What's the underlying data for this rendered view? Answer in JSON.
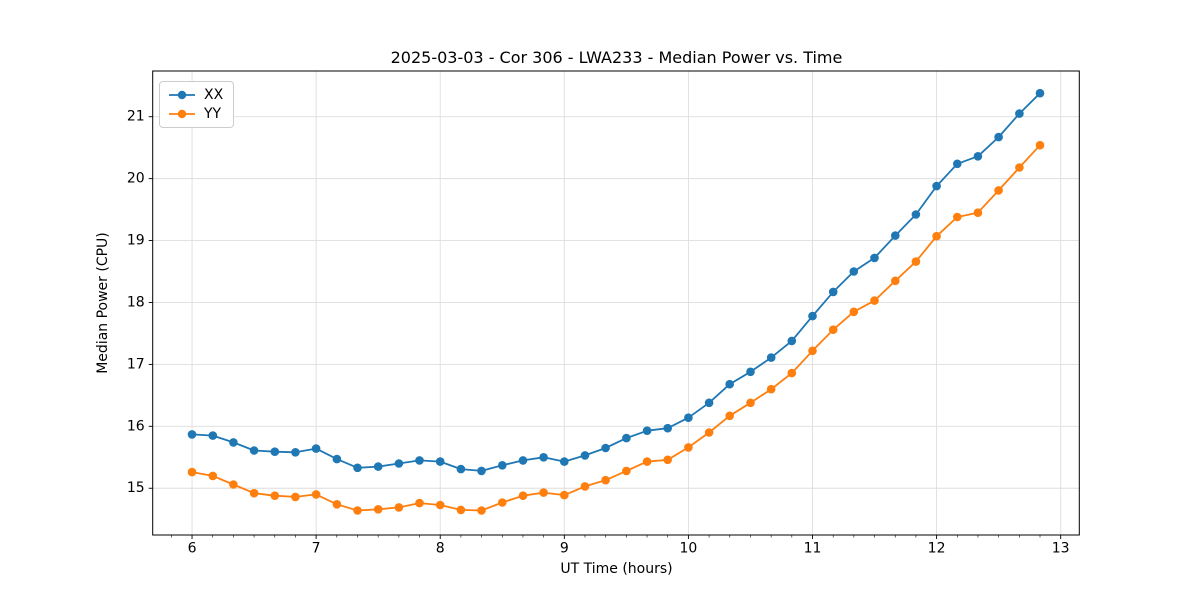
{
  "chart_data": {
    "type": "line",
    "title": "2025-03-03 - Cor 306 - LWA233 - Median Power vs. Time",
    "xlabel": "UT Time (hours)",
    "ylabel": "Median Power (CPU)",
    "x": [
      6,
      6.167,
      6.333,
      6.5,
      6.667,
      6.833,
      7,
      7.167,
      7.333,
      7.5,
      7.667,
      7.833,
      8,
      8.167,
      8.333,
      8.5,
      8.667,
      8.833,
      9,
      9.167,
      9.333,
      9.5,
      9.667,
      9.833,
      10,
      10.167,
      10.333,
      10.5,
      10.667,
      10.833,
      11,
      11.167,
      11.333,
      11.5,
      11.667,
      11.833,
      12,
      12.167,
      12.333,
      12.5,
      12.667,
      12.833
    ],
    "series": [
      {
        "name": "XX",
        "color": "#1f77b4",
        "values": [
          15.87,
          15.85,
          15.74,
          15.61,
          15.59,
          15.58,
          15.64,
          15.47,
          15.33,
          15.35,
          15.4,
          15.45,
          15.43,
          15.31,
          15.28,
          15.37,
          15.45,
          15.5,
          15.43,
          15.53,
          15.65,
          15.81,
          15.93,
          15.97,
          16.14,
          16.38,
          16.68,
          16.88,
          17.11,
          17.38,
          17.78,
          18.17,
          18.5,
          18.72,
          19.08,
          19.42,
          19.88,
          20.24,
          20.36,
          20.67,
          21.05,
          21.38
        ]
      },
      {
        "name": "YY",
        "color": "#ff7f0e",
        "values": [
          15.26,
          15.2,
          15.06,
          14.92,
          14.88,
          14.86,
          14.9,
          14.74,
          14.64,
          14.66,
          14.69,
          14.76,
          14.73,
          14.65,
          14.64,
          14.77,
          14.88,
          14.93,
          14.89,
          15.03,
          15.13,
          15.28,
          15.43,
          15.46,
          15.66,
          15.9,
          16.17,
          16.38,
          16.6,
          16.86,
          17.22,
          17.56,
          17.85,
          18.03,
          18.35,
          18.66,
          19.07,
          19.38,
          19.45,
          19.81,
          20.18,
          20.54
        ]
      }
    ],
    "xlim": [
      5.683,
      13.15
    ],
    "ylim": [
      14.245,
      21.738
    ],
    "xticks": [
      6,
      7,
      8,
      9,
      10,
      11,
      12,
      13
    ],
    "yticks": [
      15,
      16,
      17,
      18,
      19,
      20,
      21
    ],
    "x_minor_step": 0.1666667,
    "grid": true,
    "grid_color": "#dedede",
    "spine_color": "#000000",
    "background": "#ffffff",
    "legend_position": "upper left",
    "marker": "o",
    "marker_radius": 4.3,
    "line_width": 1.8
  },
  "legend": {
    "items": [
      {
        "label": "XX",
        "color": "#1f77b4"
      },
      {
        "label": "YY",
        "color": "#ff7f0e"
      }
    ]
  }
}
